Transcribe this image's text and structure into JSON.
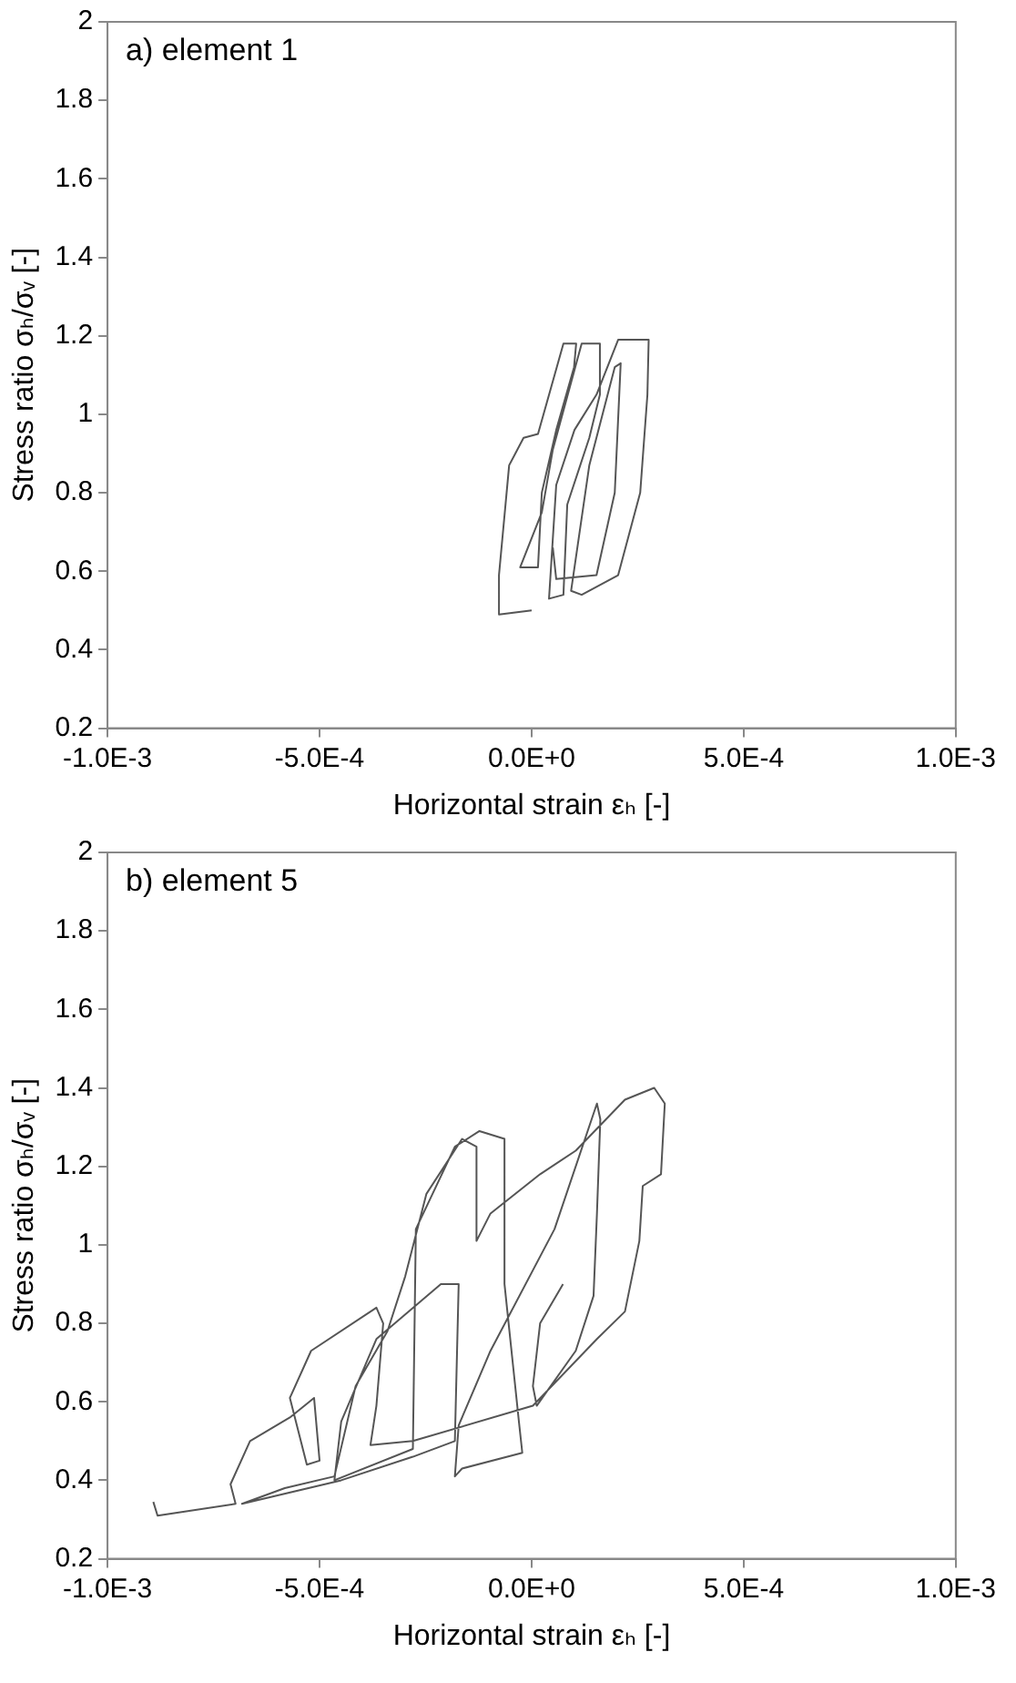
{
  "chart_data": [
    {
      "type": "line",
      "annotations": [
        "a) element 1"
      ],
      "xlabel": "Horizontal strain εₕ [-]",
      "ylabel": "Stress ratio σₕ/σᵥ [-]",
      "marker": "none",
      "grid": false,
      "legend": false,
      "xlim": [
        -0.001,
        0.001
      ],
      "xticks": [
        {
          "value": -0.001,
          "label": "-1.0E-3"
        },
        {
          "value": -0.0005,
          "label": "-5.0E-4"
        },
        {
          "value": 0,
          "label": "0.0E+0"
        },
        {
          "value": 0.0005,
          "label": "5.0E-4"
        },
        {
          "value": 0.001,
          "label": "1.0E-3"
        }
      ],
      "ylim": [
        0.2,
        2
      ],
      "yticks": [
        0.2,
        0.4,
        0.6,
        0.8,
        1,
        1.2,
        1.4,
        1.6,
        1.8,
        2
      ],
      "series": [
        {
          "color": "#555555",
          "x": [
            0,
            -7.7e-05,
            -7.7e-05,
            -5.3e-05,
            -1.9e-05,
            1.5e-05,
            7.5e-05,
            0.000105,
            0.0001,
            5.8e-05,
            2.4e-05,
            1.5e-05,
            -2.7e-05,
            2.4e-05,
            5e-05,
            0.000118,
            0.000161,
            0.000161,
            0.000136,
            8.4e-05,
            7.5e-05,
            4.1e-05,
            5.8e-05,
            0.000101,
            0.000153,
            0.000204,
            0.000247,
            0.000276,
            0.000273,
            0.000256,
            0.000204,
            0.000118,
            9.3e-05,
            0.000136,
            0.000196,
            0.00021,
            0.000196,
            0.000153,
            5.8e-05,
            5e-05
          ],
          "values": [
            0.5,
            0.49,
            0.59,
            0.87,
            0.94,
            0.95,
            1.18,
            1.18,
            1.12,
            0.96,
            0.8,
            0.61,
            0.61,
            0.75,
            0.91,
            1.18,
            1.18,
            1.05,
            0.94,
            0.77,
            0.54,
            0.53,
            0.82,
            0.96,
            1.05,
            1.19,
            1.19,
            1.19,
            1.05,
            0.8,
            0.59,
            0.54,
            0.55,
            0.87,
            1.12,
            1.13,
            0.8,
            0.59,
            0.58,
            0.66
          ]
        }
      ]
    },
    {
      "type": "line",
      "annotations": [
        "b) element 5"
      ],
      "xlabel": "Horizontal strain εₕ [-]",
      "ylabel": "Stress ratio σₕ/σᵥ [-]",
      "marker": "none",
      "grid": false,
      "legend": false,
      "xlim": [
        -0.001,
        0.001
      ],
      "xticks": [
        {
          "value": -0.001,
          "label": "-1.0E-3"
        },
        {
          "value": -0.0005,
          "label": "-5.0E-4"
        },
        {
          "value": 0,
          "label": "0.0E+0"
        },
        {
          "value": 0.0005,
          "label": "5.0E-4"
        },
        {
          "value": 0.001,
          "label": "1.0E-3"
        }
      ],
      "ylim": [
        0.2,
        2
      ],
      "yticks": [
        0.2,
        0.4,
        0.6,
        0.8,
        1,
        1.2,
        1.4,
        1.6,
        1.8,
        2
      ],
      "series": [
        {
          "color": "#555555",
          "x": [
            -0.000892,
            -0.000882,
            -0.000698,
            -0.00071,
            -0.000664,
            -0.00057,
            -0.000513,
            -0.0005,
            -0.00053,
            -0.00057,
            -0.00052,
            -0.000366,
            -0.00035,
            -0.000366,
            -0.00038,
            -0.00028,
            3e-06,
            0.000154,
            0.00022,
            0.000254,
            0.000262,
            0.000305,
            0.000314,
            0.000289,
            0.00022,
            0.000104,
            2e-05,
            -9.7e-05,
            -0.00013,
            -0.00013,
            -0.000164,
            -0.000248,
            -0.000298,
            -0.00034,
            -0.000415,
            -0.000465,
            -0.000582,
            -0.000683,
            -0.000449,
            -0.00028,
            -0.000181,
            -0.000172,
            -0.000214,
            -0.000366,
            -0.000449,
            -0.000465,
            -0.00028,
            -0.000273,
            -0.000181,
            -0.000123,
            -6.4e-05,
            -6.4e-05,
            -3e-05,
            -2.2e-05,
            -0.000164,
            -0.000181,
            -0.000172,
            -9.7e-05,
            5.4e-05,
            0.000154,
            0.000162,
            0.000154,
            0.000146,
            0.000104,
            1.2e-05,
            3e-06,
            2e-05,
            7.4e-05
          ],
          "values": [
            0.345,
            0.31,
            0.34,
            0.39,
            0.5,
            0.56,
            0.61,
            0.45,
            0.44,
            0.61,
            0.73,
            0.84,
            0.8,
            0.59,
            0.49,
            0.5,
            0.59,
            0.76,
            0.83,
            1.01,
            1.15,
            1.18,
            1.36,
            1.4,
            1.37,
            1.24,
            1.18,
            1.08,
            1.01,
            1.25,
            1.27,
            1.13,
            0.92,
            0.78,
            0.64,
            0.41,
            0.38,
            0.34,
            0.4,
            0.46,
            0.5,
            0.9,
            0.9,
            0.76,
            0.55,
            0.4,
            0.48,
            1.04,
            1.25,
            1.29,
            1.27,
            0.9,
            0.55,
            0.47,
            0.43,
            0.41,
            0.54,
            0.73,
            1.04,
            1.36,
            1.32,
            1.08,
            0.87,
            0.73,
            0.59,
            0.64,
            0.8,
            0.9
          ]
        }
      ]
    }
  ]
}
